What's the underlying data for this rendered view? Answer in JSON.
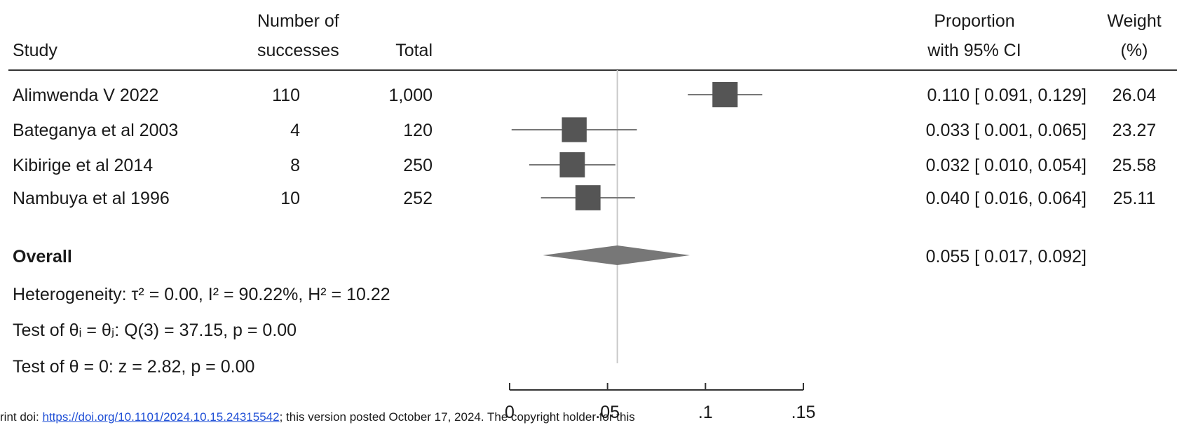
{
  "chart_data": {
    "type": "forest",
    "columns": {
      "study": "Study",
      "successes_line1": "Number of",
      "successes_line2": "successes",
      "total": "Total",
      "proportion_line1": "Proportion",
      "proportion_line2": "with 95% CI",
      "weight_line1": "Weight",
      "weight_line2": "(%)"
    },
    "studies": [
      {
        "label": "Alimwenda V 2022",
        "successes": "110",
        "total": "1,000",
        "estimate": 0.11,
        "ci_low": 0.091,
        "ci_high": 0.129,
        "ci_text": "0.110 [ 0.091,  0.129]",
        "weight": "26.04"
      },
      {
        "label": "Bateganya et al 2003",
        "successes": "4",
        "total": "120",
        "estimate": 0.033,
        "ci_low": 0.001,
        "ci_high": 0.065,
        "ci_text": "0.033 [ 0.001,  0.065]",
        "weight": "23.27"
      },
      {
        "label": "Kibirige et al 2014",
        "successes": "8",
        "total": "250",
        "estimate": 0.032,
        "ci_low": 0.01,
        "ci_high": 0.054,
        "ci_text": "0.032 [ 0.010,  0.054]",
        "weight": "25.58"
      },
      {
        "label": "Nambuya et al 1996",
        "successes": "10",
        "total": "252",
        "estimate": 0.04,
        "ci_low": 0.016,
        "ci_high": 0.064,
        "ci_text": "0.040 [ 0.016,  0.064]",
        "weight": "25.11"
      }
    ],
    "overall": {
      "label": "Overall",
      "estimate": 0.055,
      "ci_low": 0.017,
      "ci_high": 0.092,
      "ci_text": "0.055 [ 0.017,  0.092]"
    },
    "stats": [
      {
        "text": "Heterogeneity: τ² = 0.00, I² = 90.22%, H² = 10.22"
      },
      {
        "text": "Test of θᵢ = θⱼ: Q(3) = 37.15, p = 0.00"
      },
      {
        "text": "Test of θ = 0: z = 2.82, p = 0.00"
      }
    ],
    "xaxis": {
      "ticks": [
        0,
        0.05,
        0.1,
        0.15
      ],
      "tick_labels": [
        "0",
        ".05",
        ".1",
        ".15"
      ],
      "range": [
        0,
        0.15
      ]
    },
    "reference_line": 0.055,
    "colors": {
      "marker": "#555555",
      "diamond": "#777777",
      "ci_line": "#777777",
      "ref_line": "#c8c8c8",
      "text": "#1a1a1a"
    }
  },
  "footer": {
    "prefix": "rint doi: ",
    "link": "https://doi.org/10.1101/2024.10.15.24315542",
    "suffix": "; this version posted October 17, 2024. The copyright holder for this"
  }
}
